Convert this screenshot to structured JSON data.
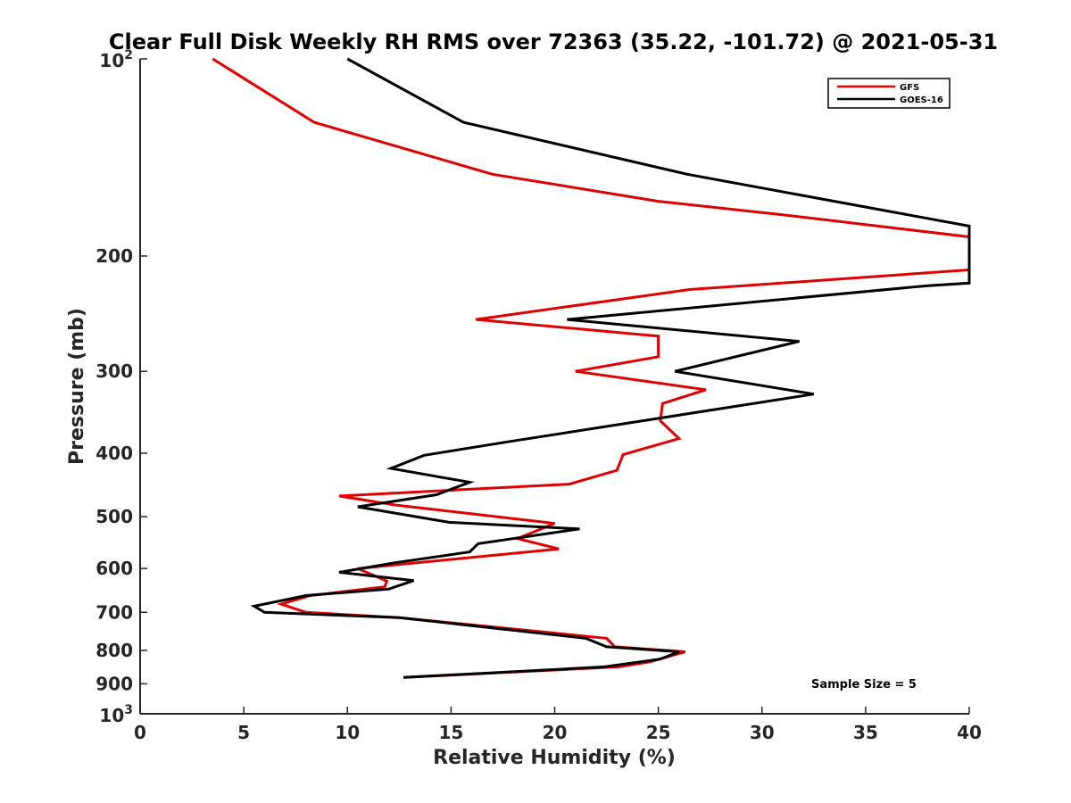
{
  "chart_data": {
    "type": "line",
    "title": "Clear Full Disk Weekly RH RMS over 72363 (35.22, -101.72) @ 2021-05-31",
    "xlabel": "Relative Humidity (%)",
    "ylabel": "Pressure (mb)",
    "xlim": [
      0,
      40
    ],
    "ylim": [
      100,
      1000
    ],
    "yscale": "log",
    "y_reversed": true,
    "grid": false,
    "legend_position": "top-right",
    "x_ticks": [
      "0",
      "5",
      "10",
      "15",
      "20",
      "25",
      "30",
      "35",
      "40"
    ],
    "y_ticks": [
      {
        "value": 100,
        "base": "10",
        "exp": "2"
      },
      {
        "value": 200,
        "label": "200"
      },
      {
        "value": 300,
        "label": "300"
      },
      {
        "value": 400,
        "label": "400"
      },
      {
        "value": 500,
        "label": "500"
      },
      {
        "value": 600,
        "label": "600"
      },
      {
        "value": 700,
        "label": "700"
      },
      {
        "value": 800,
        "label": "800"
      },
      {
        "value": 900,
        "label": "900"
      },
      {
        "value": 1000,
        "base": "10",
        "exp": "3"
      }
    ],
    "series": [
      {
        "name": "GFS",
        "color": "#e00000",
        "points": [
          {
            "x": 3.5,
            "y": 100
          },
          {
            "x": 8.4,
            "y": 125
          },
          {
            "x": 17.0,
            "y": 150
          },
          {
            "x": 25.0,
            "y": 165
          },
          {
            "x": 31.0,
            "y": 173
          },
          {
            "x": 40.0,
            "y": 187
          },
          {
            "x": 40.0,
            "y": 210
          },
          {
            "x": 26.5,
            "y": 225
          },
          {
            "x": 16.2,
            "y": 250
          },
          {
            "x": 25.0,
            "y": 265
          },
          {
            "x": 25.0,
            "y": 285
          },
          {
            "x": 21.0,
            "y": 300
          },
          {
            "x": 27.3,
            "y": 320
          },
          {
            "x": 25.2,
            "y": 336
          },
          {
            "x": 25.1,
            "y": 357
          },
          {
            "x": 26.0,
            "y": 380
          },
          {
            "x": 23.3,
            "y": 402
          },
          {
            "x": 23.0,
            "y": 425
          },
          {
            "x": 20.7,
            "y": 446
          },
          {
            "x": 9.6,
            "y": 465
          },
          {
            "x": 12.3,
            "y": 480
          },
          {
            "x": 20.0,
            "y": 512
          },
          {
            "x": 18.2,
            "y": 540
          },
          {
            "x": 20.2,
            "y": 560
          },
          {
            "x": 10.5,
            "y": 600
          },
          {
            "x": 11.9,
            "y": 627
          },
          {
            "x": 11.8,
            "y": 640
          },
          {
            "x": 8.2,
            "y": 660
          },
          {
            "x": 6.8,
            "y": 680
          },
          {
            "x": 8.0,
            "y": 700
          },
          {
            "x": 12.5,
            "y": 713
          },
          {
            "x": 22.5,
            "y": 767
          },
          {
            "x": 22.9,
            "y": 790
          },
          {
            "x": 26.3,
            "y": 804
          },
          {
            "x": 24.6,
            "y": 833
          },
          {
            "x": 23.1,
            "y": 848
          },
          {
            "x": 12.7,
            "y": 880
          }
        ]
      },
      {
        "name": "GOES-16",
        "color": "#000000",
        "points": [
          {
            "x": 10.0,
            "y": 100
          },
          {
            "x": 15.6,
            "y": 125
          },
          {
            "x": 26.4,
            "y": 150
          },
          {
            "x": 40.0,
            "y": 180
          },
          {
            "x": 40.0,
            "y": 220
          },
          {
            "x": 38.0,
            "y": 222
          },
          {
            "x": 20.6,
            "y": 250
          },
          {
            "x": 31.8,
            "y": 270
          },
          {
            "x": 25.8,
            "y": 300
          },
          {
            "x": 32.5,
            "y": 325
          },
          {
            "x": 17.6,
            "y": 385
          },
          {
            "x": 13.7,
            "y": 403
          },
          {
            "x": 12.1,
            "y": 422
          },
          {
            "x": 15.9,
            "y": 443
          },
          {
            "x": 14.3,
            "y": 463
          },
          {
            "x": 10.5,
            "y": 483
          },
          {
            "x": 14.9,
            "y": 510
          },
          {
            "x": 21.2,
            "y": 522
          },
          {
            "x": 16.3,
            "y": 550
          },
          {
            "x": 15.9,
            "y": 566
          },
          {
            "x": 12.3,
            "y": 588
          },
          {
            "x": 9.6,
            "y": 608
          },
          {
            "x": 13.2,
            "y": 626
          },
          {
            "x": 12.0,
            "y": 645
          },
          {
            "x": 8.0,
            "y": 660
          },
          {
            "x": 5.5,
            "y": 685
          },
          {
            "x": 6.0,
            "y": 700
          },
          {
            "x": 12.5,
            "y": 713
          },
          {
            "x": 21.5,
            "y": 767
          },
          {
            "x": 22.5,
            "y": 790
          },
          {
            "x": 26.0,
            "y": 804
          },
          {
            "x": 25.1,
            "y": 825
          },
          {
            "x": 22.4,
            "y": 848
          },
          {
            "x": 12.7,
            "y": 880
          }
        ]
      }
    ],
    "annotation": "Sample Size = 5"
  }
}
